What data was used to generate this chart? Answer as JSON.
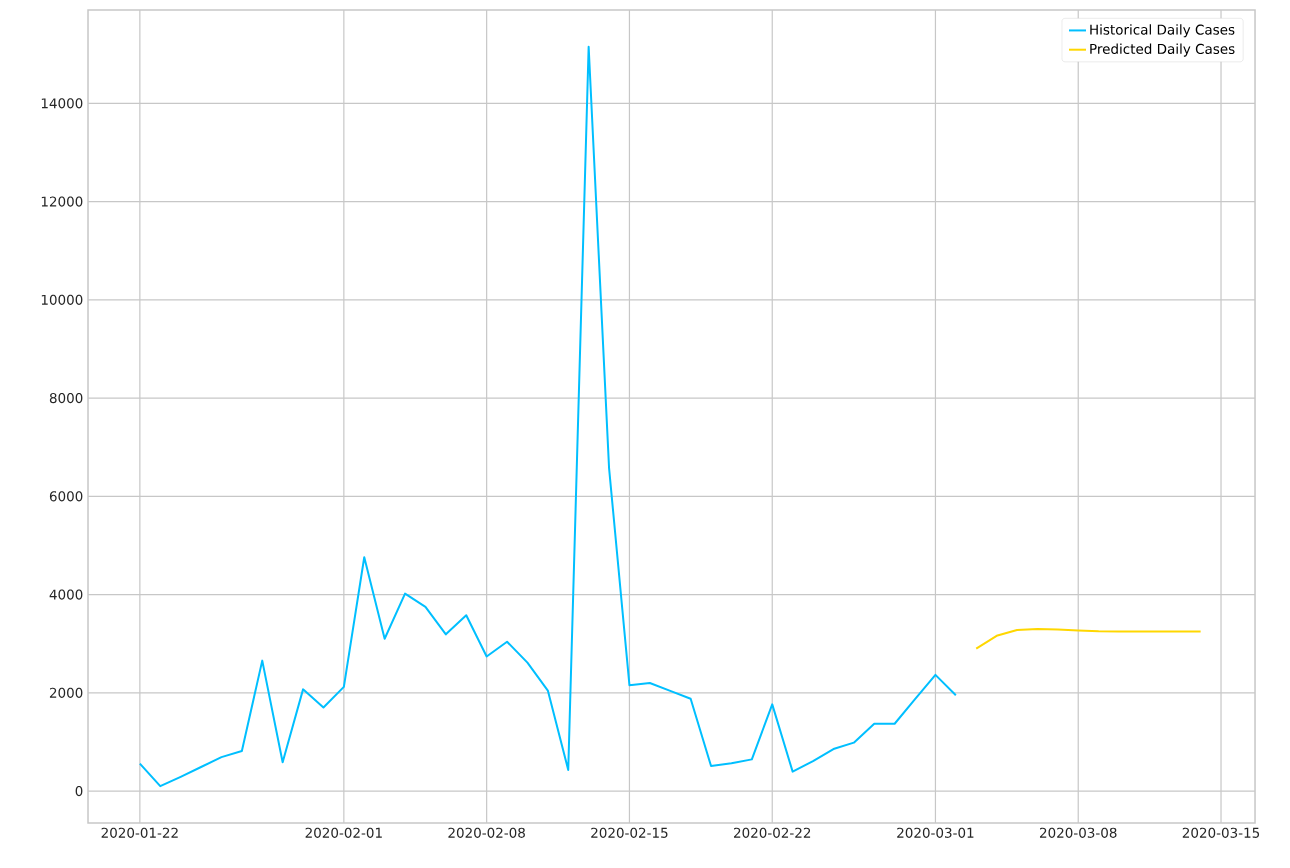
{
  "chart_data": {
    "type": "line",
    "xlim": [
      "2020-01-19T11:00",
      "2020-03-16T16:00"
    ],
    "ylim": [
      -650,
      15900
    ],
    "xticks": [
      "2020-01-22",
      "2020-02-01",
      "2020-02-08",
      "2020-02-15",
      "2020-02-22",
      "2020-03-01",
      "2020-03-08",
      "2020-03-15"
    ],
    "yticks": [
      0,
      2000,
      4000,
      6000,
      8000,
      10000,
      12000,
      14000
    ],
    "grid": true,
    "legend": "top right",
    "series": [
      {
        "name": "Historical Daily Cases",
        "color": "#00bfff",
        "x": [
          "2020-01-22",
          "2020-01-23",
          "2020-01-24",
          "2020-01-25",
          "2020-01-26",
          "2020-01-27",
          "2020-01-28",
          "2020-01-29",
          "2020-01-30",
          "2020-01-31",
          "2020-02-01",
          "2020-02-02",
          "2020-02-03",
          "2020-02-04",
          "2020-02-05",
          "2020-02-06",
          "2020-02-07",
          "2020-02-08",
          "2020-02-09",
          "2020-02-10",
          "2020-02-11",
          "2020-02-12",
          "2020-02-13",
          "2020-02-14",
          "2020-02-15",
          "2020-02-16",
          "2020-02-17",
          "2020-02-18",
          "2020-02-19",
          "2020-02-20",
          "2020-02-21",
          "2020-02-22",
          "2020-02-23",
          "2020-02-24",
          "2020-02-25",
          "2020-02-26",
          "2020-02-27",
          "2020-02-28",
          "2020-02-29",
          "2020-03-01",
          "2020-03-02"
        ],
        "values": [
          560,
          100,
          290,
          490,
          690,
          815,
          2655,
          585,
          2070,
          1700,
          2120,
          4760,
          3100,
          4020,
          3750,
          3190,
          3580,
          2740,
          3040,
          2615,
          2045,
          430,
          15150,
          6580,
          2155,
          2200,
          2040,
          1880,
          510,
          565,
          645,
          1765,
          395,
          610,
          855,
          985,
          1370,
          1370,
          1870,
          2365,
          1950
        ]
      },
      {
        "name": "Predicted Daily Cases",
        "color": "#ffd700",
        "x": [
          "2020-03-03",
          "2020-03-04",
          "2020-03-05",
          "2020-03-06",
          "2020-03-07",
          "2020-03-08",
          "2020-03-09",
          "2020-03-10",
          "2020-03-11",
          "2020-03-12",
          "2020-03-13",
          "2020-03-14"
        ],
        "values": [
          2900,
          3160,
          3280,
          3300,
          3290,
          3270,
          3255,
          3250,
          3250,
          3250,
          3250,
          3250
        ]
      }
    ]
  }
}
